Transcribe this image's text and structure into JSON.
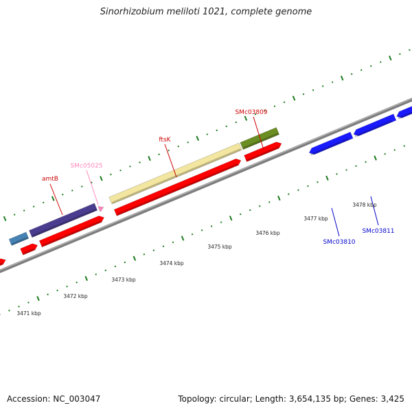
{
  "title": "Sinorhizobium meliloti 1021, complete genome",
  "footer": {
    "accession": "Accession: NC_003047",
    "summary": "Topology: circular; Length: 3,654,135 bp; Genes: 3,425"
  },
  "colors": {
    "backbone": "#8c8c8c",
    "cds": "#ff0000",
    "tick": "#1a7a1a",
    "label_red": "#cc0000",
    "label_pink": "#ff88bb",
    "label_blue": "#0000cc"
  },
  "scale": {
    "unit": "kbp",
    "labels": [
      "3471 kbp",
      "3472 kbp",
      "3473 kbp",
      "3474 kbp",
      "3475 kbp",
      "3476 kbp",
      "3477 kbp",
      "3478 kbp"
    ]
  },
  "features": [
    {
      "id": "amtB",
      "label": "amtB",
      "color": "#4a3d8f",
      "label_color": "#cc0000"
    },
    {
      "id": "SMc05025",
      "label": "SMc05025",
      "color": "#ff88bb",
      "label_color": "#ff88bb"
    },
    {
      "id": "ftsK",
      "label": "ftsK",
      "color": "#f2e6a0",
      "label_color": "#cc0000"
    },
    {
      "id": "SMc03809",
      "label": "SMc03809",
      "color": "#6b8e23",
      "label_color": "#cc0000"
    },
    {
      "id": "SMc03810",
      "label": "SMc03810",
      "color": "#1a1aff",
      "label_color": "#0000cc"
    },
    {
      "id": "SMc03811",
      "label": "SMc03811",
      "color": "#1a1aff",
      "label_color": "#0000cc"
    }
  ]
}
